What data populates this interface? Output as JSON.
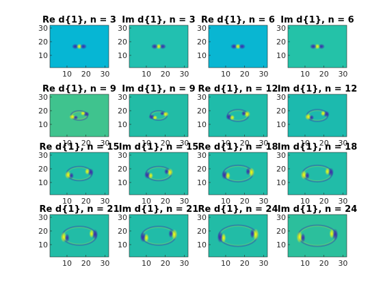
{
  "figure": {
    "background": "#ffffff",
    "colormap": "parula"
  },
  "chart_data": {
    "type": "heatmap",
    "grid": {
      "rows": 4,
      "cols": 4
    },
    "x_ticks": [
      "10",
      "20",
      "30"
    ],
    "y_ticks": [
      "30",
      "20",
      "10"
    ],
    "xlim": [
      1,
      32
    ],
    "ylim": [
      1,
      32
    ],
    "y_direction": "normal",
    "background_value_color": "#21bca8",
    "panels": [
      {
        "title": "Re d{1}, n = 3",
        "part": "Re",
        "n": 3,
        "bg": "#06b6d4"
      },
      {
        "title": "Im d{1}, n = 3",
        "part": "Im",
        "n": 3,
        "bg": "#22c0b0"
      },
      {
        "title": "Re d{1}, n = 6",
        "part": "Re",
        "n": 6,
        "bg": "#09b6d2"
      },
      {
        "title": "Im d{1}, n = 6",
        "part": "Im",
        "n": 6,
        "bg": "#24c2a8"
      },
      {
        "title": "Re d{1}, n = 9",
        "part": "Re",
        "n": 9,
        "bg": "#3fc38e"
      },
      {
        "title": "Im d{1}, n = 9",
        "part": "Im",
        "n": 9,
        "bg": "#22bca6"
      },
      {
        "title": "Re d{1}, n = 12",
        "part": "Re",
        "n": 12,
        "bg": "#1fbcaa"
      },
      {
        "title": "Im d{1}, n = 12",
        "part": "Im",
        "n": 12,
        "bg": "#1cbaae"
      },
      {
        "title": "Re d{1}, n = 15",
        "part": "Re",
        "n": 15,
        "bg": "#20bca8"
      },
      {
        "title": "Im d{1}, n = 15",
        "part": "Im",
        "n": 15,
        "bg": "#22bca6"
      },
      {
        "title": "Re d{1}, n = 18",
        "part": "Re",
        "n": 18,
        "bg": "#20bca8"
      },
      {
        "title": "Im d{1}, n = 18",
        "part": "Im",
        "n": 18,
        "bg": "#21bca8"
      },
      {
        "title": "Re d{1}, n = 21",
        "part": "Re",
        "n": 21,
        "bg": "#22bca6"
      },
      {
        "title": "Im d{1}, n = 21",
        "part": "Im",
        "n": 21,
        "bg": "#21bca8"
      },
      {
        "title": "Re d{1}, n = 24",
        "part": "Re",
        "n": 24,
        "bg": "#22bca6"
      },
      {
        "title": "Im d{1}, n = 24",
        "part": "Im",
        "n": 24,
        "bg": "#2cbf9c"
      }
    ]
  }
}
